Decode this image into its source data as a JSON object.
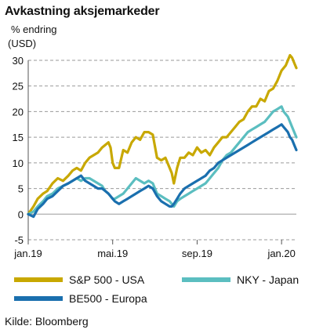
{
  "header": {
    "title": "Avkastning aksjemarkeder",
    "unit_line1": "% endring",
    "unit_line2": "(USD)"
  },
  "source": "Kilde: Bloomberg",
  "chart_data": {
    "type": "line",
    "title": "Avkastning aksjemarkeder",
    "ylabel": "% endring (USD)",
    "ylim": [
      -5,
      30
    ],
    "yticks": [
      -5,
      0,
      5,
      10,
      15,
      20,
      25,
      30
    ],
    "xlim": [
      0,
      12.7
    ],
    "xticks": [
      {
        "label": "jan.19",
        "pos": 0
      },
      {
        "label": "mai.19",
        "pos": 4
      },
      {
        "label": "sep.19",
        "pos": 8
      },
      {
        "label": "jan.20",
        "pos": 12
      }
    ],
    "grid": "horizontal-dashed",
    "legend_position": "bottom",
    "x": [
      0,
      0.25,
      0.45,
      0.7,
      0.9,
      1.15,
      1.4,
      1.65,
      1.9,
      2.1,
      2.3,
      2.5,
      2.7,
      2.9,
      3.1,
      3.3,
      3.5,
      3.65,
      3.8,
      3.9,
      4.0,
      4.1,
      4.3,
      4.5,
      4.7,
      4.9,
      5.1,
      5.3,
      5.5,
      5.7,
      5.9,
      6.1,
      6.3,
      6.5,
      6.7,
      6.8,
      6.9,
      7.05,
      7.2,
      7.4,
      7.6,
      7.8,
      8.0,
      8.2,
      8.4,
      8.6,
      8.8,
      9.0,
      9.2,
      9.4,
      9.6,
      9.8,
      10.0,
      10.2,
      10.4,
      10.6,
      10.8,
      11.0,
      11.2,
      11.4,
      11.6,
      11.8,
      12.0,
      12.1,
      12.2,
      12.3,
      12.4,
      12.5,
      12.6,
      12.7
    ],
    "series": [
      {
        "name": "S&P 500 - USA",
        "color": "#C8A800",
        "values": [
          0,
          1.5,
          3,
          4,
          4.5,
          6,
          7,
          6.5,
          7.5,
          8.5,
          9,
          8.5,
          10,
          11,
          11.5,
          12,
          13,
          13.5,
          14,
          13,
          10,
          9,
          9,
          12.5,
          12,
          14,
          15,
          14.5,
          16,
          16,
          15.5,
          11,
          10.5,
          11,
          9,
          8,
          6,
          9,
          11,
          11,
          12,
          11.5,
          13,
          12,
          12.5,
          11.5,
          13,
          14,
          15,
          15,
          16,
          17,
          18,
          18.5,
          20,
          21,
          21,
          22.5,
          22,
          24,
          24.5,
          26,
          28,
          28.5,
          29,
          30,
          31,
          30.5,
          29.5,
          28.5
        ]
      },
      {
        "name": "NKY - Japan",
        "color": "#5BBEC0",
        "values": [
          0,
          0.5,
          1.5,
          2.5,
          3.5,
          4,
          5,
          5.5,
          6,
          6.5,
          7,
          6.5,
          7,
          7,
          6.5,
          6,
          5.5,
          4.5,
          4,
          3.5,
          3,
          3,
          3.5,
          4,
          5,
          6,
          7,
          6.5,
          6,
          6.5,
          6,
          4,
          3.5,
          3,
          2.5,
          2,
          1.5,
          2.5,
          3,
          3.5,
          4,
          4.5,
          5,
          5.5,
          6,
          7,
          8,
          9,
          10.5,
          11.5,
          12,
          13,
          14,
          15,
          16,
          16.5,
          17,
          17.5,
          18,
          19,
          20,
          20.5,
          21,
          20,
          19.5,
          19,
          18,
          17,
          16,
          15
        ]
      },
      {
        "name": "BE500 - Europa",
        "color": "#1A6FAE",
        "values": [
          0,
          -0.5,
          1,
          2,
          3,
          3.5,
          4.5,
          5.5,
          6,
          6.5,
          7,
          7.5,
          6.5,
          6,
          5.5,
          5,
          5,
          4.5,
          4,
          3.5,
          3,
          2.5,
          2,
          2.5,
          3,
          3.5,
          4,
          4.5,
          5,
          5.5,
          5,
          3.5,
          2.5,
          2,
          1.5,
          1.5,
          2,
          3,
          4,
          5,
          5.5,
          6,
          6.5,
          7,
          7.5,
          8.5,
          9,
          10,
          10.5,
          11,
          11.5,
          12,
          12.5,
          13,
          13.5,
          14,
          14.5,
          15,
          15.5,
          16,
          16.5,
          17,
          17.5,
          17,
          16.5,
          16,
          15,
          14.5,
          13.5,
          12.5
        ]
      }
    ]
  }
}
